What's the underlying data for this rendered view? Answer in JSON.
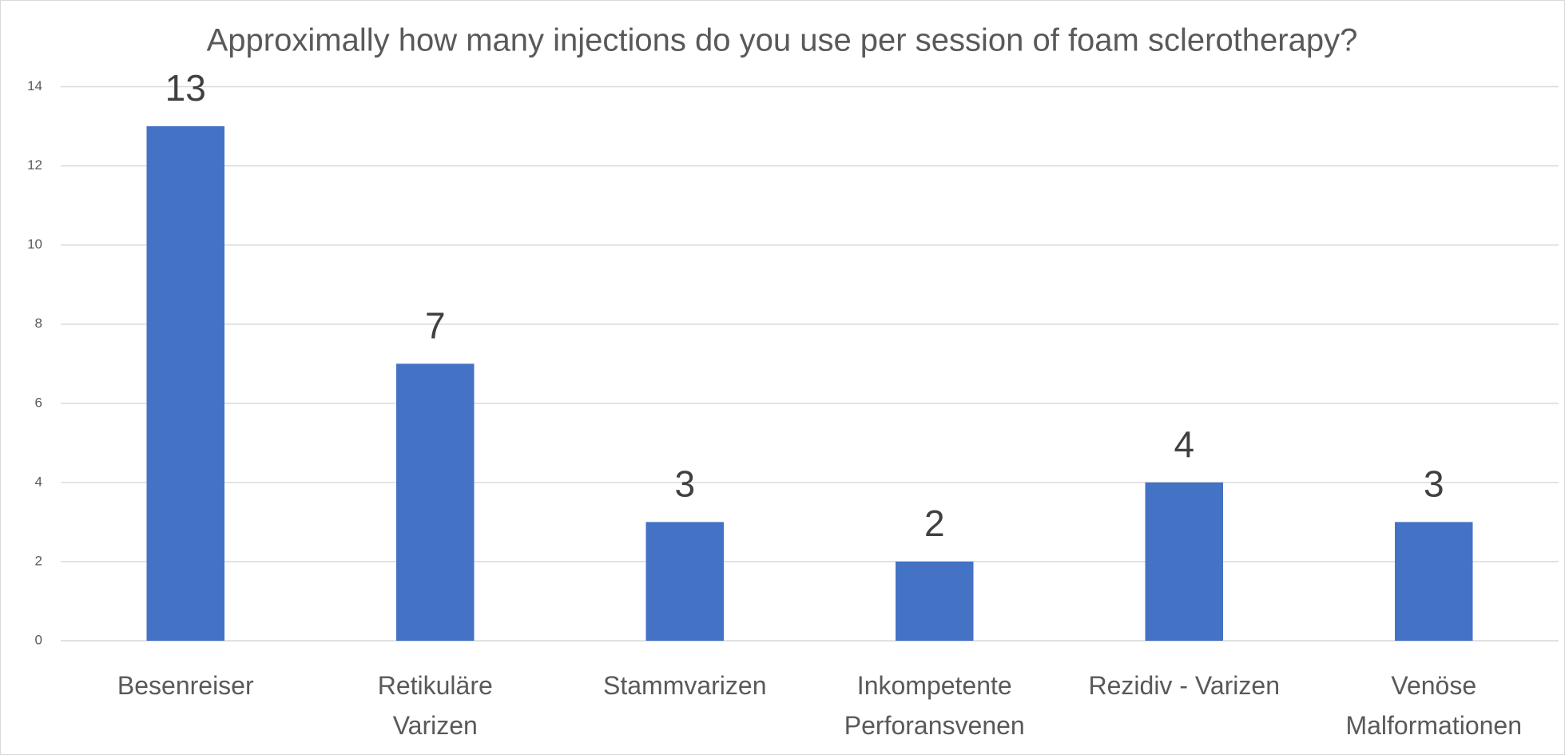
{
  "chart_data": {
    "type": "bar",
    "title": "Approximally how many injections do you use per session of foam sclerotherapy?",
    "categories": [
      "Besenreiser",
      "Retikuläre Varizen",
      "Stammvarizen",
      "Inkompetente Perforansvenen",
      "Rezidiv - Varizen",
      "Venöse Malformationen"
    ],
    "values": [
      13,
      7,
      3,
      2,
      4,
      3
    ],
    "color": "#4472c4",
    "ylim": [
      0,
      14
    ],
    "yticks": [
      0,
      2,
      4,
      6,
      8,
      10,
      12,
      14
    ],
    "grid": true
  }
}
